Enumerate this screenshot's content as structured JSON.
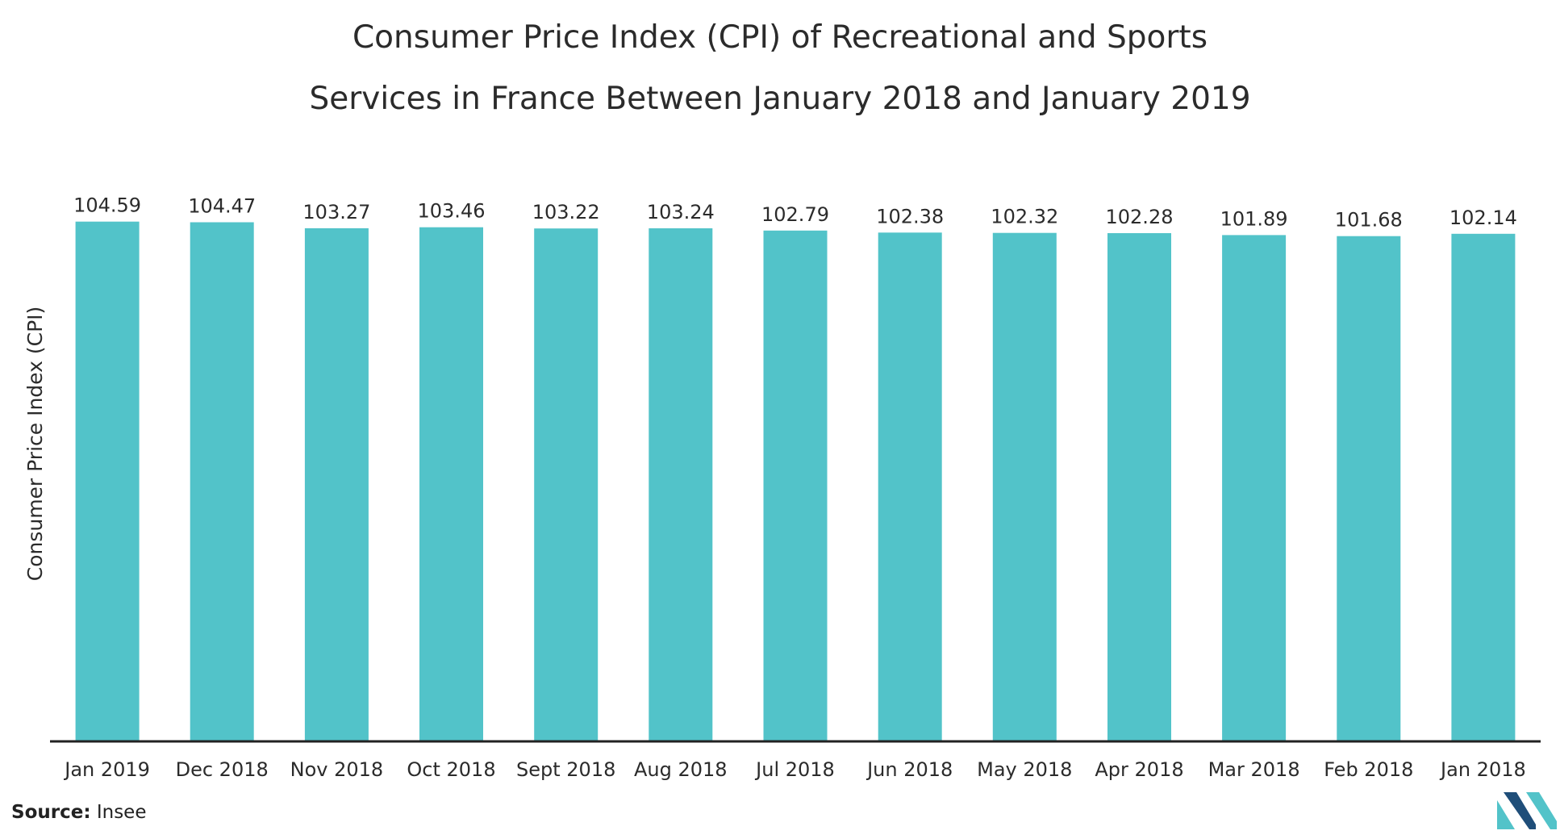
{
  "title_line1": "Consumer Price Index (CPI) of Recreational and Sports",
  "title_line2": "Services in France Between January 2018 and January 2019",
  "source_label": "Source:",
  "source_value": "Insee",
  "colors": {
    "bar": "#52c3c9",
    "axis": "#222222",
    "text": "#2b2b2b",
    "logo_dark": "#1f4e79",
    "logo_light": "#52c3c9"
  },
  "logo_icon": "mordor-intelligence-logo-icon",
  "chart_data": {
    "type": "bar",
    "title": "Consumer Price Index (CPI) of Recreational and Sports Services in France Between January 2018 and January 2019",
    "xlabel": "",
    "ylabel": "Consumer Price Index (CPI)",
    "categories": [
      "Jan 2019",
      "Dec 2018",
      "Nov 2018",
      "Oct 2018",
      "Sept 2018",
      "Aug 2018",
      "Jul 2018",
      "Jun 2018",
      "May 2018",
      "Apr 2018",
      "Mar 2018",
      "Feb 2018",
      "Jan 2018"
    ],
    "values": [
      104.59,
      104.47,
      103.27,
      103.46,
      103.22,
      103.24,
      102.79,
      102.38,
      102.32,
      102.28,
      101.89,
      101.68,
      102.14
    ],
    "value_labels": [
      "104.59",
      "104.47",
      "103.27",
      "103.46",
      "103.22",
      "103.24",
      "102.79",
      "102.38",
      "102.32",
      "102.28",
      "101.89",
      "101.68",
      "102.14"
    ],
    "ylim": [
      0,
      105
    ],
    "grid": false,
    "legend": "none"
  }
}
